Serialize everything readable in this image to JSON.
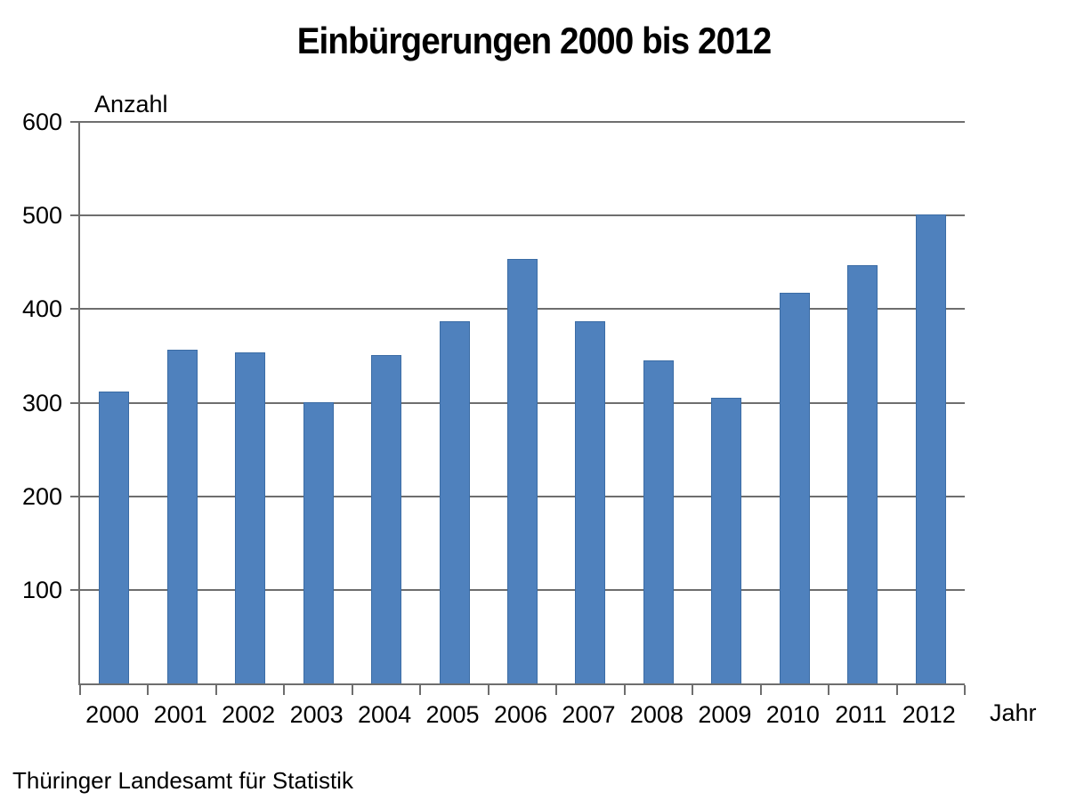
{
  "chart_data": {
    "type": "bar",
    "title": "Einbürgerungen 2000 bis 2012",
    "ylabel": "Anzahl",
    "xlabel": "Jahr",
    "source": "Thüringer Landesamt für Statistik",
    "categories": [
      "2000",
      "2001",
      "2002",
      "2003",
      "2004",
      "2005",
      "2006",
      "2007",
      "2008",
      "2009",
      "2010",
      "2011",
      "2012"
    ],
    "values": [
      312,
      357,
      354,
      300,
      351,
      387,
      454,
      387,
      345,
      305,
      417,
      447,
      501
    ],
    "ylim": [
      0,
      600
    ],
    "yticks": [
      100,
      200,
      300,
      400,
      500,
      600
    ],
    "grid": true,
    "legend": false,
    "bar_color": "#4F81BD",
    "bar_border_color": "#3B6CA5",
    "axis_color": "#6E6E6E",
    "text_color": "#000000",
    "background_color": "#FFFFFF"
  }
}
